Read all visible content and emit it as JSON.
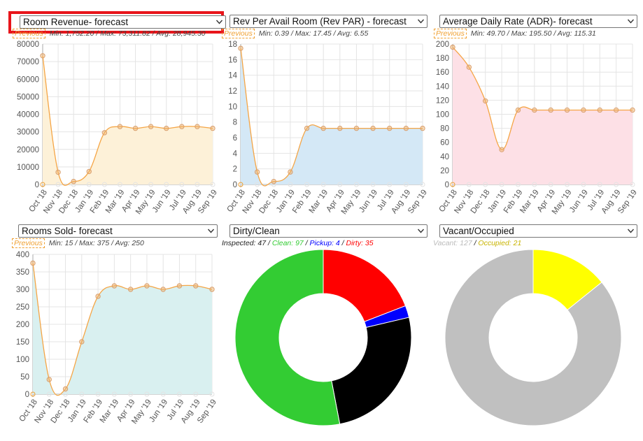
{
  "chart_data": [
    {
      "type": "area",
      "title": "Room Revenue- forecast",
      "stats": "Min: 1,752.20 / Max: 73,311.82 / Avg: 28,945.30",
      "previous_label": "Previous",
      "categories": [
        "Oct '18",
        "Nov '18",
        "Dec '18",
        "Jan '19",
        "Feb '19",
        "Mar '19",
        "Apr '19",
        "May '19",
        "Jun '19",
        "Jul '19",
        "Aug '19",
        "Sep '19"
      ],
      "series": [
        {
          "values": [
            73312,
            7000,
            1752,
            7400,
            29500,
            33000,
            32000,
            33000,
            32000,
            33000,
            33000,
            32000
          ]
        },
        {
          "name": "Previous",
          "values": [
            0,
            0,
            0,
            0,
            0,
            0,
            0,
            0,
            0,
            0,
            0,
            0
          ]
        }
      ],
      "ylim": [
        0,
        80000
      ],
      "yticks": [
        0,
        10000,
        20000,
        30000,
        40000,
        50000,
        60000,
        70000,
        80000
      ],
      "fill": "#fdf1d8",
      "grid": true
    },
    {
      "type": "area",
      "title": "Rev Per Avail Room (Rev PAR) - forecast",
      "stats": "Min: 0.39 / Max: 17.45 / Avg: 6.55",
      "previous_label": "Previous",
      "categories": [
        "Oct '18",
        "Nov '18",
        "Dec '18",
        "Jan '19",
        "Feb '19",
        "Mar '19",
        "Apr '19",
        "May '19",
        "Jun '19",
        "Jul '19",
        "Aug '19",
        "Sep '19"
      ],
      "series": [
        {
          "values": [
            17.45,
            1.6,
            0.39,
            1.6,
            7.2,
            7.2,
            7.2,
            7.2,
            7.2,
            7.2,
            7.2,
            7.2
          ]
        },
        {
          "name": "Previous",
          "values": [
            0,
            0,
            0,
            0,
            0,
            0,
            0,
            0,
            0,
            0,
            0,
            0
          ]
        }
      ],
      "ylim": [
        0,
        18
      ],
      "yticks": [
        0,
        2,
        4,
        6,
        8,
        10,
        12,
        14,
        16,
        18
      ],
      "fill": "#d4e8f6",
      "grid": true
    },
    {
      "type": "area",
      "title": "Average Daily Rate (ADR)- forecast",
      "stats": "Min: 49.70 / Max: 195.50 / Avg: 115.31",
      "previous_label": "Previous",
      "categories": [
        "Oct '18",
        "Nov '18",
        "Dec '18",
        "Jan '19",
        "Feb '19",
        "Mar '19",
        "Apr '19",
        "May '19",
        "Jun '19",
        "Jul '19",
        "Aug '19",
        "Sep '19"
      ],
      "series": [
        {
          "values": [
            195.5,
            167,
            119,
            49.7,
            106,
            106,
            106,
            106,
            106,
            106,
            106,
            106
          ]
        },
        {
          "name": "Previous",
          "values": [
            0,
            0,
            0,
            0,
            0,
            0,
            0,
            0,
            0,
            0,
            0,
            0
          ]
        }
      ],
      "ylim": [
        0,
        200
      ],
      "yticks": [
        0,
        20,
        40,
        60,
        80,
        100,
        120,
        140,
        160,
        180,
        200
      ],
      "fill": "#fde0e6",
      "grid": true
    },
    {
      "type": "area",
      "title": "Rooms Sold- forecast",
      "stats": "Min: 15 / Max: 375 / Avg: 250",
      "previous_label": "Previous",
      "categories": [
        "Oct '18",
        "Nov '18",
        "Dec '18",
        "Jan '19",
        "Feb '19",
        "Mar '19",
        "Apr '19",
        "May '19",
        "Jun '19",
        "Jul '19",
        "Aug '19",
        "Sep '19"
      ],
      "series": [
        {
          "values": [
            375,
            42,
            15,
            150,
            280,
            310,
            300,
            310,
            300,
            310,
            310,
            300
          ]
        },
        {
          "name": "Previous",
          "values": [
            0,
            0,
            0,
            0,
            0,
            0,
            0,
            0,
            0,
            0,
            0,
            0
          ]
        }
      ],
      "ylim": [
        0,
        400
      ],
      "yticks": [
        0,
        50,
        100,
        150,
        200,
        250,
        300,
        350,
        400
      ],
      "fill": "#d9f0f0",
      "grid": true
    },
    {
      "type": "pie",
      "title": "Dirty/Clean",
      "labels": [
        "Inspected",
        "Clean",
        "Pickup",
        "Dirty"
      ],
      "values": [
        47,
        97,
        4,
        35
      ],
      "order": [
        3,
        2,
        0,
        1
      ],
      "colors": [
        "#000000",
        "#33cc33",
        "#0000ff",
        "#ff0000"
      ],
      "text_colors": [
        "#222222",
        "#33cc33",
        "#0000ff",
        "#ff0000"
      ]
    },
    {
      "type": "pie",
      "title": "Vacant/Occupied",
      "labels": [
        "Vacant",
        "Occupied"
      ],
      "values": [
        127,
        21
      ],
      "order": [
        1,
        0
      ],
      "colors": [
        "#c0c0c0",
        "#ffff00"
      ],
      "text_colors": [
        "#bbbbbb",
        "#c8b400"
      ]
    }
  ]
}
